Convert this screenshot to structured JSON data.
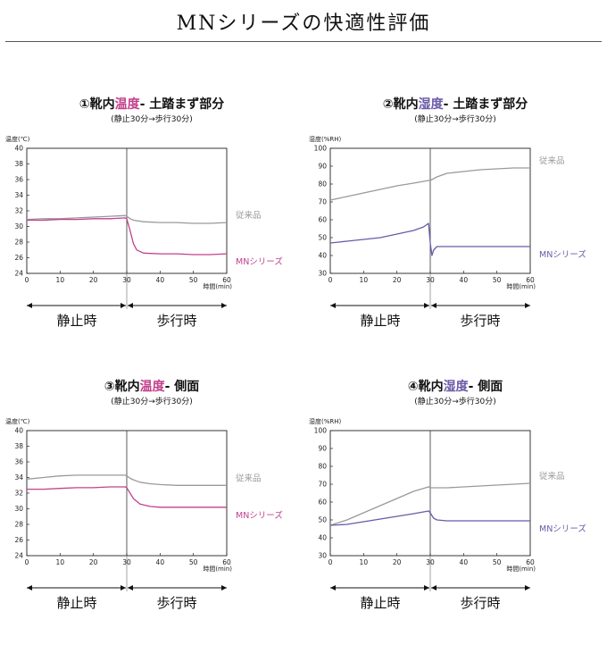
{
  "page": {
    "title": "MNシリーズの快適性評価"
  },
  "chart_data": [
    {
      "type": "line",
      "title_prefix": "①靴内",
      "title_highlight": "温度",
      "title_suffix": "- 土踏まず部分",
      "subtitle": "(静止30分→歩行30分)",
      "ylabel": "温度(℃)",
      "xlabel": "時間(min)",
      "ylim": [
        24,
        40
      ],
      "yticks": [
        24,
        26,
        28,
        30,
        32,
        34,
        36,
        38,
        40
      ],
      "xlim": [
        0,
        60
      ],
      "xticks": [
        0,
        10,
        20,
        30,
        40,
        50,
        60
      ],
      "phase_labels": [
        "静止時",
        "歩行時"
      ],
      "series": [
        {
          "name": "従来品",
          "color": "#9a9a9a",
          "x": [
            0,
            5,
            10,
            15,
            20,
            25,
            29.5,
            30,
            31,
            32,
            35,
            40,
            45,
            50,
            55,
            60
          ],
          "values": [
            30.9,
            31.0,
            31.0,
            31.1,
            31.2,
            31.3,
            31.4,
            31.3,
            31.0,
            30.8,
            30.6,
            30.5,
            30.5,
            30.4,
            30.4,
            30.5
          ]
        },
        {
          "name": "MNシリーズ",
          "color": "#c2418c",
          "x": [
            0,
            5,
            10,
            15,
            20,
            25,
            29.5,
            30,
            31,
            32,
            33,
            35,
            40,
            45,
            50,
            55,
            60
          ],
          "values": [
            30.8,
            30.8,
            30.9,
            30.9,
            31.0,
            31.0,
            31.1,
            31.0,
            29.5,
            27.8,
            27.0,
            26.6,
            26.5,
            26.5,
            26.4,
            26.4,
            26.5
          ]
        }
      ]
    },
    {
      "type": "line",
      "title_prefix": "②靴内",
      "title_highlight": "湿度",
      "title_suffix": "- 土踏まず部分",
      "subtitle": "(静止30分→歩行30分)",
      "ylabel": "湿度(%RH)",
      "xlabel": "時間(min)",
      "ylim": [
        30,
        100
      ],
      "yticks": [
        30,
        40,
        50,
        60,
        70,
        80,
        90,
        100
      ],
      "xlim": [
        0,
        60
      ],
      "xticks": [
        0,
        10,
        20,
        30,
        40,
        50,
        60
      ],
      "phase_labels": [
        "静止時",
        "歩行時"
      ],
      "series": [
        {
          "name": "従来品",
          "color": "#9a9a9a",
          "x": [
            0,
            5,
            10,
            15,
            20,
            25,
            29.5,
            30,
            32,
            35,
            40,
            45,
            50,
            55,
            60
          ],
          "values": [
            71,
            73,
            75,
            77,
            79,
            80.5,
            82,
            82,
            84,
            86,
            87,
            88,
            88.5,
            89,
            89
          ]
        },
        {
          "name": "MNシリーズ",
          "color": "#6b5aa8",
          "x": [
            0,
            5,
            10,
            15,
            20,
            25,
            28,
            29.5,
            30,
            30.5,
            31,
            32,
            35,
            40,
            45,
            50,
            55,
            60
          ],
          "values": [
            47,
            48,
            49,
            50,
            52,
            54,
            56,
            58,
            47,
            40,
            43,
            45,
            45,
            45,
            45,
            45,
            45,
            45
          ]
        }
      ]
    },
    {
      "type": "line",
      "title_prefix": "③靴内",
      "title_highlight": "温度",
      "title_suffix": "- 側面",
      "subtitle": "(静止30分→歩行30分)",
      "ylabel": "温度(℃)",
      "xlabel": "時間(min)",
      "ylim": [
        24,
        40
      ],
      "yticks": [
        24,
        26,
        28,
        30,
        32,
        34,
        36,
        38,
        40
      ],
      "xlim": [
        0,
        60
      ],
      "xticks": [
        0,
        10,
        20,
        30,
        40,
        50,
        60
      ],
      "phase_labels": [
        "静止時",
        "歩行時"
      ],
      "series": [
        {
          "name": "従来品",
          "color": "#9a9a9a",
          "x": [
            0,
            5,
            10,
            15,
            20,
            25,
            29.5,
            30,
            31,
            32,
            34,
            37,
            40,
            45,
            50,
            55,
            60
          ],
          "values": [
            33.8,
            34.0,
            34.2,
            34.3,
            34.3,
            34.3,
            34.3,
            34.2,
            33.9,
            33.7,
            33.4,
            33.2,
            33.1,
            33.0,
            33.0,
            33.0,
            33.0
          ]
        },
        {
          "name": "MNシリーズ",
          "color": "#c2418c",
          "x": [
            0,
            5,
            10,
            15,
            20,
            25,
            29.5,
            30,
            31,
            32,
            34,
            37,
            40,
            45,
            50,
            55,
            60
          ],
          "values": [
            32.5,
            32.5,
            32.6,
            32.7,
            32.7,
            32.8,
            32.8,
            32.7,
            32.0,
            31.3,
            30.6,
            30.3,
            30.2,
            30.2,
            30.2,
            30.2,
            30.2
          ]
        }
      ]
    },
    {
      "type": "line",
      "title_prefix": "④靴内",
      "title_highlight": "湿度",
      "title_suffix": "- 側面",
      "subtitle": "(静止30分→歩行30分)",
      "ylabel": "湿度(%RH)",
      "xlabel": "時間(min)",
      "ylim": [
        30,
        100
      ],
      "yticks": [
        30,
        40,
        50,
        60,
        70,
        80,
        90,
        100
      ],
      "xlim": [
        0,
        60
      ],
      "xticks": [
        0,
        10,
        20,
        30,
        40,
        50,
        60
      ],
      "phase_labels": [
        "静止時",
        "歩行時"
      ],
      "series": [
        {
          "name": "従来品",
          "color": "#9a9a9a",
          "x": [
            0,
            5,
            10,
            15,
            20,
            25,
            29.5,
            30,
            35,
            40,
            45,
            50,
            55,
            60
          ],
          "values": [
            47,
            50,
            54,
            58,
            62,
            66,
            68.5,
            68,
            68,
            68.5,
            69,
            69.5,
            70,
            70.5
          ]
        },
        {
          "name": "MNシリーズ",
          "color": "#6b5aa8",
          "x": [
            0,
            5,
            10,
            15,
            20,
            25,
            29.5,
            30,
            31,
            32,
            35,
            40,
            45,
            50,
            55,
            60
          ],
          "values": [
            47,
            47.5,
            49,
            50.5,
            52,
            53.5,
            55,
            54,
            51,
            50,
            49.5,
            49.5,
            49.5,
            49.5,
            49.5,
            49.5
          ]
        }
      ]
    }
  ]
}
